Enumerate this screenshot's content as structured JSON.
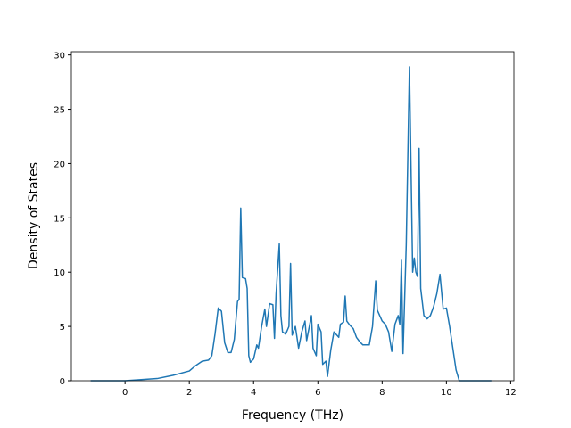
{
  "chart_data": {
    "type": "line",
    "xlabel": "Frequency (THz)",
    "ylabel": "Density of States",
    "xlim": [
      -1.67,
      12.1
    ],
    "ylim": [
      0,
      30.3
    ],
    "xticks": [
      0,
      2,
      4,
      6,
      8,
      10,
      12
    ],
    "yticks": [
      0,
      5,
      10,
      15,
      20,
      25,
      30
    ],
    "grid": false,
    "series": [
      {
        "color": "#1f77b4",
        "x": [
          -1.07,
          0,
          1,
          1.5,
          2,
          2.2,
          2.4,
          2.6,
          2.7,
          2.8,
          2.9,
          3.0,
          3.1,
          3.2,
          3.3,
          3.4,
          3.5,
          3.55,
          3.6,
          3.65,
          3.75,
          3.8,
          3.85,
          3.9,
          4.0,
          4.1,
          4.15,
          4.25,
          4.35,
          4.4,
          4.5,
          4.6,
          4.65,
          4.7,
          4.8,
          4.85,
          4.9,
          5.0,
          5.1,
          5.15,
          5.2,
          5.3,
          5.35,
          5.4,
          5.5,
          5.6,
          5.65,
          5.8,
          5.85,
          5.95,
          6.0,
          6.1,
          6.15,
          6.25,
          6.3,
          6.4,
          6.5,
          6.65,
          6.7,
          6.8,
          6.85,
          6.9,
          7.0,
          7.1,
          7.2,
          7.3,
          7.4,
          7.6,
          7.7,
          7.8,
          7.85,
          8.0,
          8.1,
          8.2,
          8.3,
          8.4,
          8.5,
          8.55,
          8.6,
          8.65,
          8.75,
          8.85,
          8.95,
          9.0,
          9.05,
          9.1,
          9.15,
          9.2,
          9.3,
          9.4,
          9.5,
          9.6,
          9.7,
          9.8,
          9.9,
          10.0,
          10.1,
          10.2,
          10.3,
          10.4,
          11.4
        ],
        "values": [
          0,
          0,
          0.2,
          0.5,
          0.9,
          1.4,
          1.8,
          1.9,
          2.3,
          4.3,
          6.7,
          6.4,
          3.5,
          2.6,
          2.6,
          3.8,
          7.3,
          7.5,
          15.9,
          9.5,
          9.4,
          8.5,
          2.3,
          1.7,
          2.0,
          3.3,
          3.0,
          5.0,
          6.6,
          5.0,
          7.1,
          7.0,
          3.9,
          8.0,
          12.6,
          6.0,
          4.5,
          4.3,
          5.0,
          10.8,
          4.2,
          5.0,
          4.0,
          3.0,
          4.5,
          5.5,
          3.7,
          6.0,
          3.0,
          2.3,
          5.2,
          4.5,
          1.5,
          1.8,
          0.4,
          2.8,
          4.5,
          4.0,
          5.2,
          5.4,
          7.8,
          5.5,
          5.1,
          4.8,
          4.0,
          3.6,
          3.3,
          3.3,
          5.0,
          9.2,
          6.5,
          5.5,
          5.2,
          4.5,
          2.7,
          5.2,
          6.0,
          5.2,
          11.1,
          2.5,
          12.5,
          28.9,
          10.0,
          11.3,
          10.0,
          9.6,
          21.4,
          8.5,
          6.0,
          5.7,
          6.0,
          6.8,
          8.0,
          9.8,
          6.6,
          6.7,
          5.0,
          3.0,
          1.0,
          0,
          0
        ]
      }
    ]
  }
}
